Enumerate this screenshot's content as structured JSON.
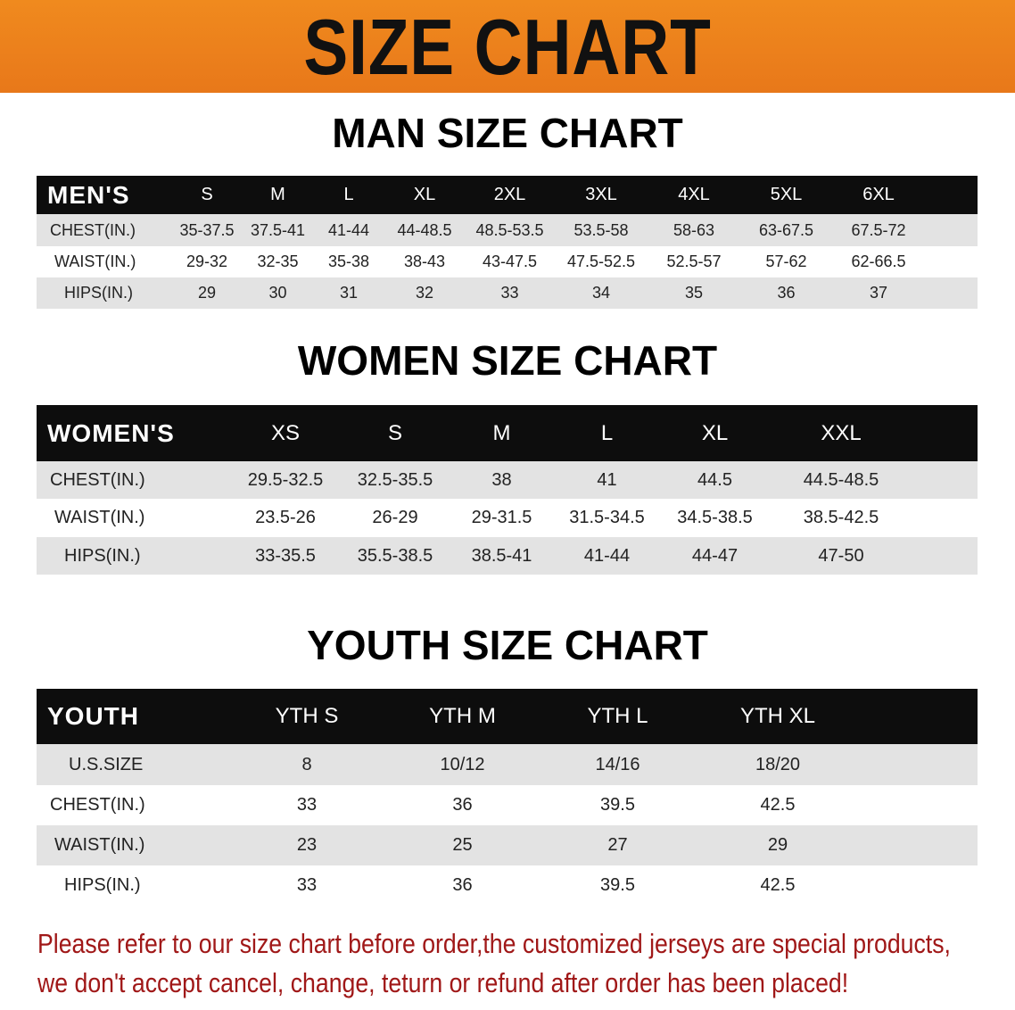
{
  "banner": {
    "title": "SIZE CHART",
    "color": "#ec801c"
  },
  "men": {
    "title": "MAN SIZE CHART",
    "header": [
      "MEN'S",
      "S",
      "M",
      "L",
      "XL",
      "2XL",
      "3XL",
      "4XL",
      "5XL",
      "6XL"
    ],
    "rows": [
      [
        "CHEST(IN.)",
        "35-37.5",
        "37.5-41",
        "41-44",
        "44-48.5",
        "48.5-53.5",
        "53.5-58",
        "58-63",
        "63-67.5",
        "67.5-72"
      ],
      [
        "WAIST(IN.)",
        "29-32",
        "32-35",
        "35-38",
        "38-43",
        "43-47.5",
        "47.5-52.5",
        "52.5-57",
        "57-62",
        "62-66.5"
      ],
      [
        "HIPS(IN.)",
        "29",
        "30",
        "31",
        "32",
        "33",
        "34",
        "35",
        "36",
        "37"
      ]
    ]
  },
  "women": {
    "title": "WOMEN SIZE CHART",
    "header": [
      "WOMEN'S",
      "XS",
      "S",
      "M",
      "L",
      "XL",
      "XXL"
    ],
    "rows": [
      [
        "CHEST(IN.)",
        "29.5-32.5",
        "32.5-35.5",
        "38",
        "41",
        "44.5",
        "44.5-48.5"
      ],
      [
        "WAIST(IN.)",
        "23.5-26",
        "26-29",
        "29-31.5",
        "31.5-34.5",
        "34.5-38.5",
        "38.5-42.5"
      ],
      [
        "HIPS(IN.)",
        "33-35.5",
        "35.5-38.5",
        "38.5-41",
        "41-44",
        "44-47",
        "47-50"
      ]
    ]
  },
  "youth": {
    "title": "YOUTH SIZE CHART",
    "header": [
      "YOUTH",
      "YTH S",
      "YTH M",
      "YTH L",
      "YTH XL"
    ],
    "rows": [
      [
        "U.S.SIZE",
        "8",
        "10/12",
        "14/16",
        "18/20"
      ],
      [
        "CHEST(IN.)",
        "33",
        "36",
        "39.5",
        "42.5"
      ],
      [
        "WAIST(IN.)",
        "23",
        "25",
        "27",
        "29"
      ],
      [
        "HIPS(IN.)",
        "33",
        "36",
        "39.5",
        "42.5"
      ]
    ]
  },
  "notice": {
    "line1": "Please refer to our size chart before order,the customized jerseys are special products,",
    "line2": "we don't accept cancel, change, teturn or refund after order has been placed!",
    "color": "#a01818"
  }
}
